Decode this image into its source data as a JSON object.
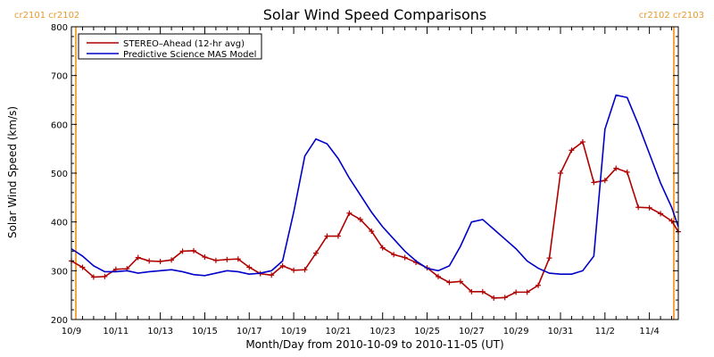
{
  "chart_data": {
    "type": "line",
    "title": "Solar Wind Speed Comparisons",
    "xlabel": "Month/Day from 2010-10-09 to 2010-11-05 (UT)",
    "ylabel": "Solar Wind Speed (km/s)",
    "ylim": [
      200,
      800
    ],
    "xlim": [
      0,
      27.3
    ],
    "yticks": [
      200,
      300,
      400,
      500,
      600,
      700,
      800
    ],
    "xticks": [
      {
        "x": 0,
        "label": "10/9"
      },
      {
        "x": 2,
        "label": "10/11"
      },
      {
        "x": 4,
        "label": "10/13"
      },
      {
        "x": 6,
        "label": "10/15"
      },
      {
        "x": 8,
        "label": "10/17"
      },
      {
        "x": 10,
        "label": "10/19"
      },
      {
        "x": 12,
        "label": "10/21"
      },
      {
        "x": 14,
        "label": "10/23"
      },
      {
        "x": 16,
        "label": "10/25"
      },
      {
        "x": 18,
        "label": "10/27"
      },
      {
        "x": 20,
        "label": "10/29"
      },
      {
        "x": 22,
        "label": "10/31"
      },
      {
        "x": 24,
        "label": "11/2"
      },
      {
        "x": 26,
        "label": "11/4"
      }
    ],
    "legend": "top-left",
    "carrington": {
      "left_label": "cr2101 cr2102",
      "right_label": "cr2102 cr2103",
      "left_x": 0.2,
      "right_x": 27.1,
      "color": "#f5a540"
    },
    "series": [
      {
        "name": "STEREO–Ahead (12-hr avg)",
        "color": "#b00000",
        "markers": true,
        "points": [
          [
            0.0,
            320
          ],
          [
            0.5,
            307
          ],
          [
            1.0,
            287
          ],
          [
            1.5,
            288
          ],
          [
            2.0,
            303
          ],
          [
            2.5,
            304
          ],
          [
            3.0,
            327
          ],
          [
            3.5,
            320
          ],
          [
            4.0,
            319
          ],
          [
            4.5,
            322
          ],
          [
            5.0,
            340
          ],
          [
            5.5,
            341
          ],
          [
            6.0,
            328
          ],
          [
            6.5,
            321
          ],
          [
            7.0,
            323
          ],
          [
            7.5,
            324
          ],
          [
            8.0,
            307
          ],
          [
            8.5,
            294
          ],
          [
            9.0,
            291
          ],
          [
            9.5,
            310
          ],
          [
            10.0,
            301
          ],
          [
            10.5,
            302
          ],
          [
            11.0,
            336
          ],
          [
            11.5,
            371
          ],
          [
            12.0,
            371
          ],
          [
            12.5,
            418
          ],
          [
            13.0,
            405
          ],
          [
            13.5,
            381
          ],
          [
            14.0,
            347
          ],
          [
            14.5,
            333
          ],
          [
            15.0,
            327
          ],
          [
            15.5,
            317
          ],
          [
            16.0,
            306
          ],
          [
            16.5,
            288
          ],
          [
            17.0,
            276
          ],
          [
            17.5,
            278
          ],
          [
            18.0,
            257
          ],
          [
            18.5,
            257
          ],
          [
            19.0,
            244
          ],
          [
            19.5,
            245
          ],
          [
            20.0,
            256
          ],
          [
            20.5,
            256
          ],
          [
            21.0,
            270
          ],
          [
            21.5,
            326
          ],
          [
            22.0,
            500
          ],
          [
            22.5,
            547
          ],
          [
            23.0,
            564
          ],
          [
            23.5,
            481
          ],
          [
            24.0,
            485
          ],
          [
            24.5,
            510
          ],
          [
            25.0,
            502
          ],
          [
            25.5,
            430
          ],
          [
            26.0,
            429
          ],
          [
            26.5,
            417
          ],
          [
            27.0,
            402
          ],
          [
            27.3,
            380
          ]
        ]
      },
      {
        "name": "Predictive Science MAS Model",
        "color": "#0000c8",
        "markers": false,
        "points": [
          [
            0.0,
            345
          ],
          [
            0.5,
            330
          ],
          [
            1.0,
            310
          ],
          [
            1.5,
            298
          ],
          [
            2.0,
            298
          ],
          [
            2.5,
            300
          ],
          [
            3.0,
            295
          ],
          [
            3.5,
            298
          ],
          [
            4.0,
            300
          ],
          [
            4.5,
            302
          ],
          [
            5.0,
            298
          ],
          [
            5.5,
            292
          ],
          [
            6.0,
            290
          ],
          [
            6.5,
            295
          ],
          [
            7.0,
            300
          ],
          [
            7.5,
            298
          ],
          [
            8.0,
            293
          ],
          [
            8.5,
            295
          ],
          [
            9.0,
            300
          ],
          [
            9.5,
            320
          ],
          [
            10.0,
            420
          ],
          [
            10.5,
            535
          ],
          [
            11.0,
            570
          ],
          [
            11.5,
            560
          ],
          [
            12.0,
            530
          ],
          [
            12.5,
            490
          ],
          [
            13.0,
            455
          ],
          [
            13.5,
            420
          ],
          [
            14.0,
            390
          ],
          [
            14.5,
            365
          ],
          [
            15.0,
            340
          ],
          [
            15.5,
            320
          ],
          [
            16.0,
            305
          ],
          [
            16.5,
            300
          ],
          [
            17.0,
            310
          ],
          [
            17.5,
            350
          ],
          [
            18.0,
            400
          ],
          [
            18.5,
            405
          ],
          [
            19.0,
            385
          ],
          [
            19.5,
            365
          ],
          [
            20.0,
            345
          ],
          [
            20.5,
            320
          ],
          [
            21.0,
            305
          ],
          [
            21.5,
            295
          ],
          [
            22.0,
            293
          ],
          [
            22.5,
            293
          ],
          [
            23.0,
            300
          ],
          [
            23.5,
            330
          ],
          [
            24.0,
            590
          ],
          [
            24.5,
            660
          ],
          [
            25.0,
            655
          ],
          [
            25.5,
            600
          ],
          [
            26.0,
            540
          ],
          [
            26.5,
            480
          ],
          [
            27.0,
            430
          ],
          [
            27.3,
            390
          ]
        ]
      }
    ]
  }
}
